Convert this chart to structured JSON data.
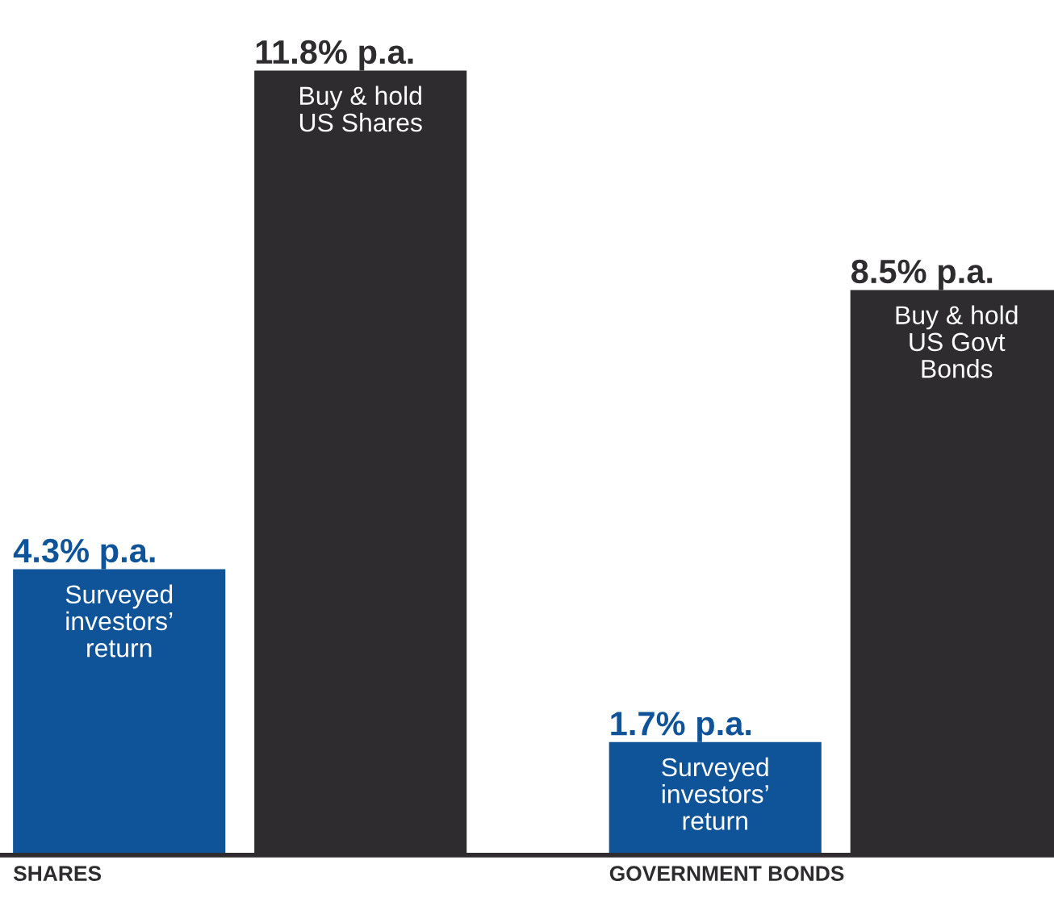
{
  "chart_data": {
    "type": "bar",
    "categories": [
      "SHARES",
      "GOVERNMENT BONDS"
    ],
    "series": [
      {
        "color": "#0f5499",
        "values": [
          4.3,
          1.7
        ],
        "value_labels": [
          "4.3% p.a.",
          "1.7% p.a."
        ]
      },
      {
        "color": "#2e2c2f",
        "values": [
          11.8,
          8.5
        ],
        "value_labels": [
          "11.8% p.a.",
          "8.5% p.a."
        ]
      }
    ],
    "annotations": [
      "Surveyed\ninvestors’\nreturn",
      "Buy & hold\nUS Shares",
      "Surveyed\ninvestors’\nreturn",
      "Buy & hold\nUS Govt\nBonds"
    ],
    "legend": false
  }
}
